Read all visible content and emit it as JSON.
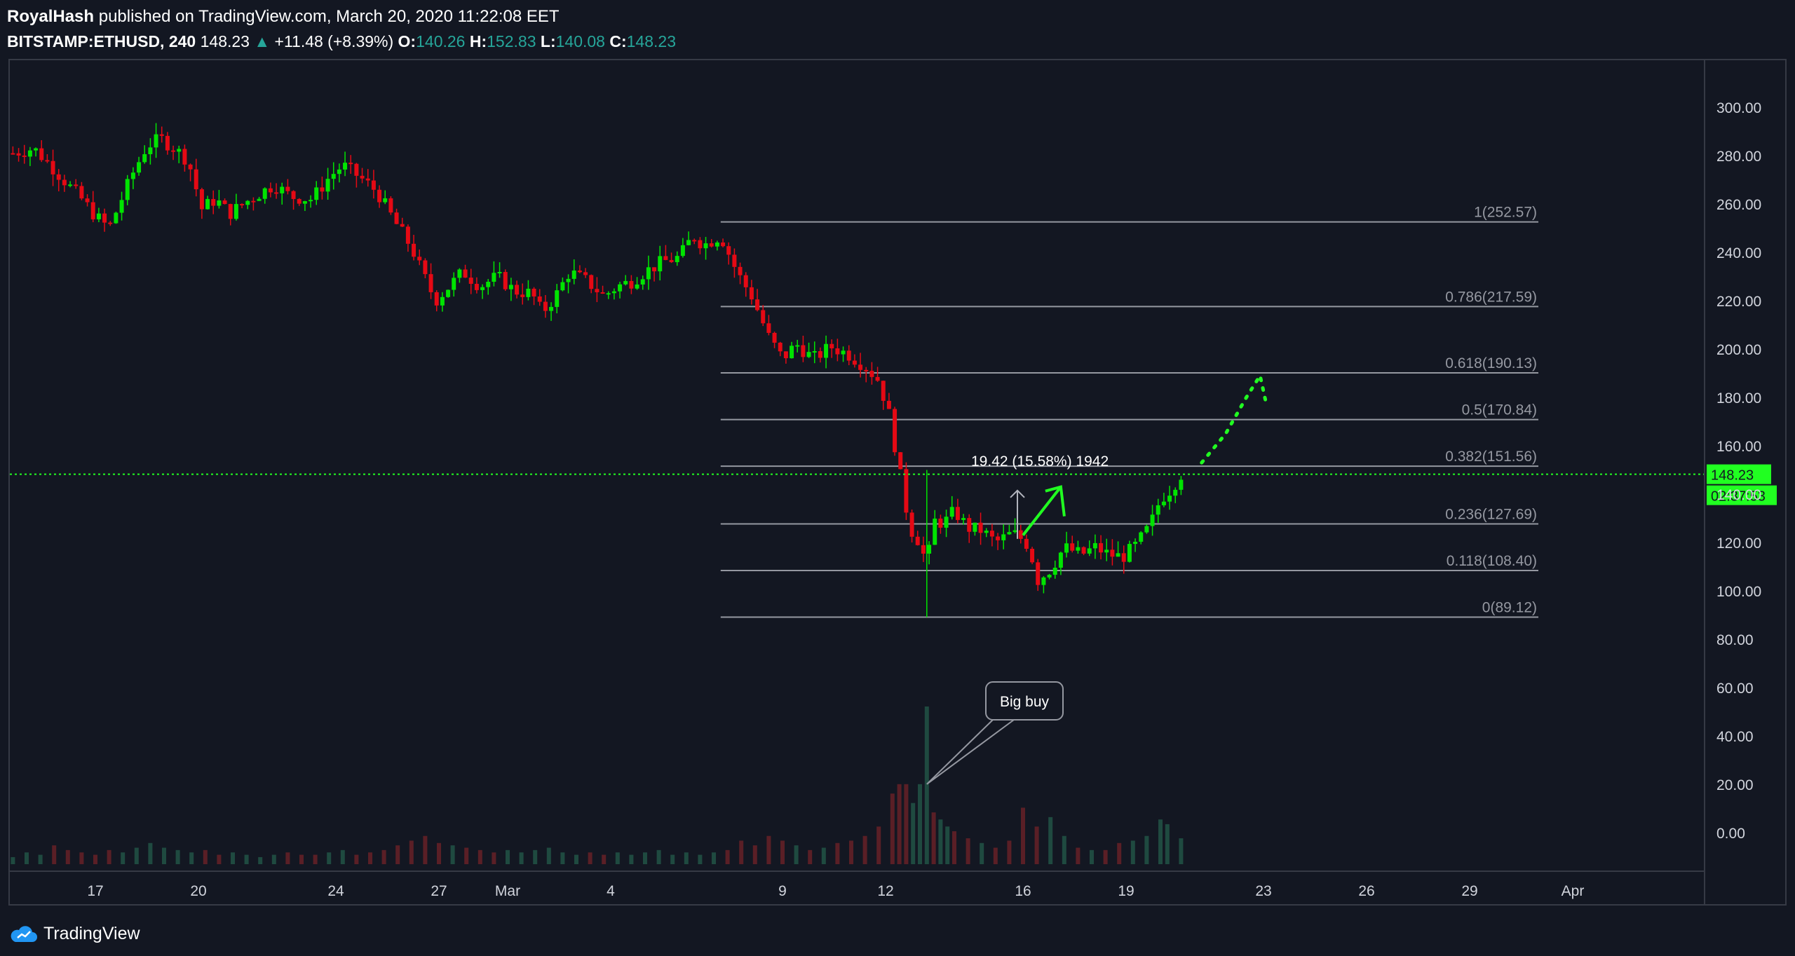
{
  "header": {
    "author": "RoyalHash",
    "published_text": "published on TradingView.com, March 20, 2020 11:22:08 EET",
    "symbol": "BITSTAMP:ETHUSD, 240",
    "last": "148.23",
    "change": "+11.48 (+8.39%)",
    "open_label": "O:",
    "open": "140.26",
    "high_label": "H:",
    "high": "152.83",
    "low_label": "L:",
    "low": "140.08",
    "close_label": "C:",
    "close": "148.23"
  },
  "footer": {
    "brand": "TradingView"
  },
  "colors": {
    "background": "#131722",
    "up": "#26a69a",
    "candle_up": "#00e400",
    "candle_down": "#e50914",
    "fib_line": "#9598a1",
    "accent_green": "#21ff21"
  },
  "chart_data": {
    "type": "candlestick",
    "title": "",
    "y_ticks": [
      300,
      280,
      260,
      240,
      220,
      200,
      180,
      160,
      140,
      120,
      100,
      80,
      60,
      40,
      20,
      0
    ],
    "y_tick_labels": [
      "300.00",
      "280.00",
      "260.00",
      "240.00",
      "220.00",
      "200.00",
      "180.00",
      "160.00",
      "140.00",
      "120.00",
      "100.00",
      "80.00",
      "60.00",
      "40.00",
      "20.00",
      "0.00"
    ],
    "x_ticks": [
      {
        "label": "17",
        "day": 17
      },
      {
        "label": "20",
        "day": 20
      },
      {
        "label": "24",
        "day": 24
      },
      {
        "label": "27",
        "day": 27
      },
      {
        "label": "Mar",
        "day": 29
      },
      {
        "label": "4",
        "day": 32
      },
      {
        "label": "9",
        "day": 37
      },
      {
        "label": "12",
        "day": 40
      },
      {
        "label": "16",
        "day": 44
      },
      {
        "label": "19",
        "day": 47
      },
      {
        "label": "23",
        "day": 51
      },
      {
        "label": "26",
        "day": 54
      },
      {
        "label": "29",
        "day": 57
      },
      {
        "label": "Apr",
        "day": 60
      }
    ],
    "price_path": [
      [
        14.6,
        281
      ],
      [
        15.2,
        283
      ],
      [
        15.7,
        276
      ],
      [
        16.2,
        268
      ],
      [
        16.6,
        262
      ],
      [
        17.0,
        255
      ],
      [
        17.4,
        250
      ],
      [
        17.7,
        260
      ],
      [
        18.1,
        273
      ],
      [
        18.5,
        284
      ],
      [
        18.9,
        287
      ],
      [
        19.3,
        283
      ],
      [
        19.7,
        278
      ],
      [
        20.1,
        258
      ],
      [
        20.5,
        262
      ],
      [
        20.9,
        256
      ],
      [
        21.5,
        262
      ],
      [
        22.2,
        268
      ],
      [
        22.7,
        263
      ],
      [
        23.3,
        262
      ],
      [
        23.8,
        271
      ],
      [
        24.2,
        276
      ],
      [
        24.7,
        271
      ],
      [
        25.2,
        265
      ],
      [
        25.7,
        253
      ],
      [
        26.2,
        242
      ],
      [
        26.5,
        232
      ],
      [
        26.9,
        220
      ],
      [
        27.3,
        226
      ],
      [
        27.7,
        232
      ],
      [
        28.2,
        226
      ],
      [
        28.7,
        230
      ],
      [
        29.2,
        224
      ],
      [
        29.7,
        223
      ],
      [
        30.0,
        215
      ],
      [
        30.4,
        222
      ],
      [
        30.8,
        232
      ],
      [
        31.3,
        228
      ],
      [
        31.8,
        222
      ],
      [
        32.2,
        226
      ],
      [
        32.6,
        228
      ],
      [
        33.0,
        232
      ],
      [
        33.5,
        236
      ],
      [
        34.0,
        238
      ],
      [
        34.4,
        247
      ],
      [
        34.7,
        243
      ],
      [
        35.2,
        247
      ],
      [
        35.7,
        231
      ],
      [
        36.1,
        222
      ],
      [
        36.6,
        205
      ],
      [
        37.0,
        196
      ],
      [
        37.4,
        202
      ],
      [
        37.9,
        196
      ],
      [
        38.4,
        201
      ],
      [
        38.9,
        198
      ],
      [
        39.4,
        193
      ],
      [
        39.8,
        187
      ],
      [
        40.1,
        173
      ],
      [
        40.4,
        150
      ],
      [
        40.7,
        126
      ],
      [
        41.0,
        120
      ],
      [
        41.2,
        110
      ],
      [
        41.4,
        129
      ],
      [
        41.7,
        128
      ],
      [
        42.0,
        133
      ],
      [
        42.4,
        126
      ],
      [
        42.8,
        125
      ],
      [
        43.2,
        120
      ],
      [
        43.7,
        124
      ],
      [
        44.0,
        121
      ],
      [
        44.2,
        118
      ],
      [
        44.4,
        104
      ],
      [
        44.8,
        109
      ],
      [
        45.2,
        118
      ],
      [
        45.7,
        115
      ],
      [
        46.1,
        118
      ],
      [
        46.5,
        115
      ],
      [
        46.9,
        114
      ],
      [
        47.3,
        119
      ],
      [
        47.7,
        127
      ],
      [
        48.0,
        138
      ],
      [
        48.3,
        142
      ],
      [
        48.6,
        148.23
      ]
    ],
    "down_day_ranges": [
      [
        15.6,
        17.5
      ],
      [
        20.0,
        20.9
      ],
      [
        22.6,
        23.4
      ],
      [
        24.6,
        27.0
      ],
      [
        27.7,
        28.0
      ],
      [
        28.1,
        28.8
      ],
      [
        31.2,
        31.8
      ],
      [
        35.2,
        37.0
      ],
      [
        37.5,
        38.0
      ],
      [
        38.4,
        40.7
      ],
      [
        41.4,
        41.5
      ],
      [
        42.0,
        42.5
      ],
      [
        42.9,
        44.5
      ],
      [
        45.6,
        45.7
      ],
      [
        46.3,
        46.9
      ]
    ],
    "volume": [
      [
        14.6,
        3
      ],
      [
        15.0,
        5
      ],
      [
        15.4,
        4
      ],
      [
        15.8,
        8
      ],
      [
        16.2,
        6
      ],
      [
        16.6,
        5
      ],
      [
        17.0,
        4
      ],
      [
        17.4,
        6
      ],
      [
        17.8,
        5
      ],
      [
        18.2,
        7
      ],
      [
        18.6,
        9
      ],
      [
        19.0,
        7
      ],
      [
        19.4,
        6
      ],
      [
        19.8,
        5
      ],
      [
        20.2,
        6
      ],
      [
        20.6,
        4
      ],
      [
        21.0,
        5
      ],
      [
        21.4,
        4
      ],
      [
        21.8,
        3
      ],
      [
        22.2,
        4
      ],
      [
        22.6,
        5
      ],
      [
        23.0,
        4
      ],
      [
        23.4,
        4
      ],
      [
        23.8,
        5
      ],
      [
        24.2,
        6
      ],
      [
        24.6,
        4
      ],
      [
        25.0,
        5
      ],
      [
        25.4,
        6
      ],
      [
        25.8,
        8
      ],
      [
        26.2,
        10
      ],
      [
        26.6,
        12
      ],
      [
        27.0,
        9
      ],
      [
        27.4,
        8
      ],
      [
        27.8,
        7
      ],
      [
        28.2,
        6
      ],
      [
        28.6,
        5
      ],
      [
        29.0,
        6
      ],
      [
        29.4,
        5
      ],
      [
        29.8,
        6
      ],
      [
        30.2,
        7
      ],
      [
        30.6,
        5
      ],
      [
        31.0,
        4
      ],
      [
        31.4,
        5
      ],
      [
        31.8,
        4
      ],
      [
        32.2,
        5
      ],
      [
        32.6,
        4
      ],
      [
        33.0,
        5
      ],
      [
        33.4,
        6
      ],
      [
        33.8,
        4
      ],
      [
        34.2,
        5
      ],
      [
        34.6,
        4
      ],
      [
        35.0,
        5
      ],
      [
        35.4,
        6
      ],
      [
        35.8,
        10
      ],
      [
        36.2,
        8
      ],
      [
        36.6,
        12
      ],
      [
        37.0,
        10
      ],
      [
        37.4,
        8
      ],
      [
        37.8,
        6
      ],
      [
        38.2,
        7
      ],
      [
        38.6,
        9
      ],
      [
        39.0,
        10
      ],
      [
        39.4,
        12
      ],
      [
        39.8,
        16
      ],
      [
        40.2,
        30
      ],
      [
        40.4,
        34
      ],
      [
        40.6,
        34
      ],
      [
        40.8,
        26
      ],
      [
        41.0,
        34
      ],
      [
        41.2,
        67
      ],
      [
        41.4,
        22
      ],
      [
        41.6,
        19
      ],
      [
        41.8,
        16
      ],
      [
        42.0,
        14
      ],
      [
        42.4,
        11
      ],
      [
        42.8,
        9
      ],
      [
        43.2,
        7
      ],
      [
        43.6,
        10
      ],
      [
        44.0,
        24
      ],
      [
        44.4,
        16
      ],
      [
        44.8,
        20
      ],
      [
        45.2,
        12
      ],
      [
        45.6,
        7
      ],
      [
        46.0,
        6
      ],
      [
        46.4,
        6
      ],
      [
        46.8,
        9
      ],
      [
        47.2,
        10
      ],
      [
        47.6,
        12
      ],
      [
        48.0,
        19
      ],
      [
        48.2,
        17
      ],
      [
        48.6,
        11
      ]
    ],
    "volume_scale_max": 67,
    "fibonacci": {
      "start_day": 35.2,
      "end_day": 59.0,
      "levels": [
        {
          "label": "1(252.57)",
          "price": 252.57
        },
        {
          "label": "0.786(217.59)",
          "price": 217.59
        },
        {
          "label": "0.618(190.13)",
          "price": 190.13
        },
        {
          "label": "0.5(170.84)",
          "price": 170.84
        },
        {
          "label": "0.382(151.56)",
          "price": 151.56
        },
        {
          "label": "0.236(127.69)",
          "price": 127.69
        },
        {
          "label": "0.118(108.40)",
          "price": 108.4
        },
        {
          "label": "0(89.12)",
          "price": 89.12
        }
      ]
    },
    "last_price": 148.23,
    "last_price_label": "148.23",
    "countdown_label": "02:37:53",
    "measure": {
      "label": "19.42 (15.58%) 1942",
      "from_day": 44.0,
      "from_price": 121.5,
      "to_price": 141.5
    },
    "callout": {
      "text": "Big buy",
      "target_day": 41.2,
      "target_volume_price": 34
    },
    "projection_path": [
      [
        49.2,
        153
      ],
      [
        49.9,
        165
      ],
      [
        50.5,
        180
      ],
      [
        50.9,
        189
      ],
      [
        51.1,
        176
      ]
    ]
  }
}
